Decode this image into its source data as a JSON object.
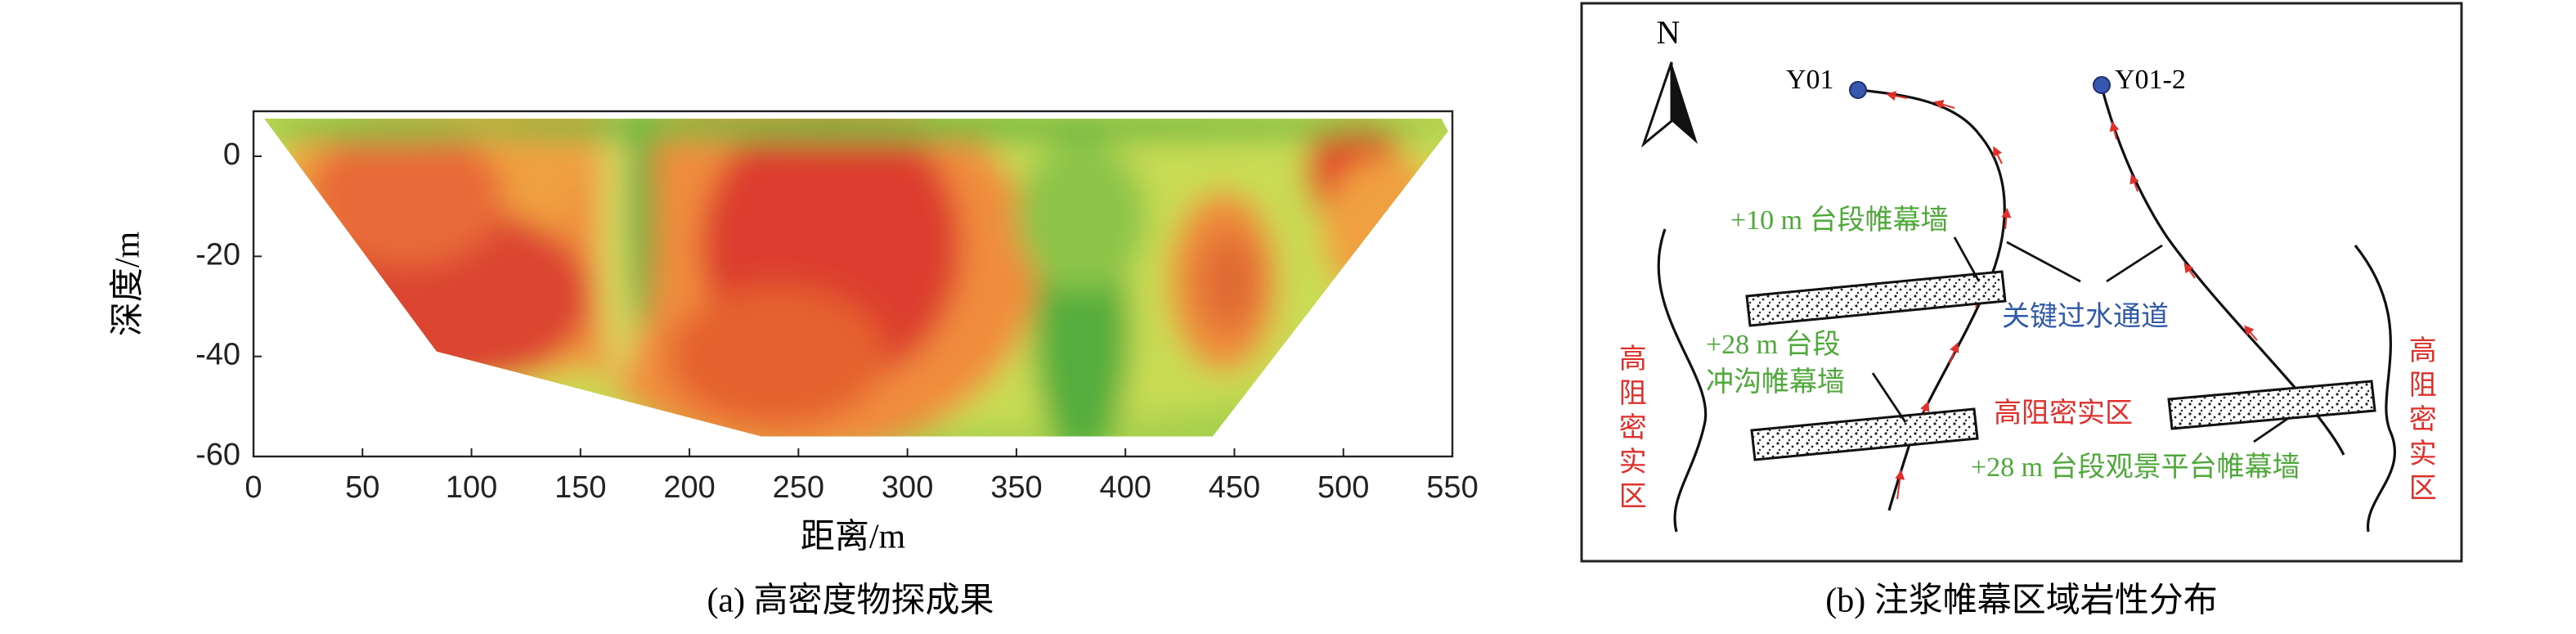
{
  "chart_data": {
    "type": "contour",
    "xlabel": "距离/m",
    "ylabel": "深度/m",
    "caption": "(a) 高密度物探成果",
    "xlim": [
      0,
      550
    ],
    "ylim": [
      -60,
      9
    ],
    "xticks": [
      0,
      50,
      100,
      150,
      200,
      250,
      300,
      350,
      400,
      450,
      500,
      550
    ],
    "yticks": [
      0,
      -20,
      -40,
      -60
    ]
  },
  "diagram": {
    "caption": "(b) 注浆帷幕区域岩性分布",
    "north": "N",
    "wells": [
      "Y01",
      "Y01-2"
    ],
    "labels": {
      "wall_10m": "+10 m 台段帷幕墙",
      "channel": "关键过水通道",
      "wall_28m_line1": "+28 m 台段",
      "wall_28m_line2": "冲沟帷幕墙",
      "dense_middle": "高阻密实区",
      "wall_28m_view": "+28 m 台段观景平台帷幕墙",
      "dense_left": "高阻密实区",
      "dense_right": "高阻密实区"
    }
  }
}
